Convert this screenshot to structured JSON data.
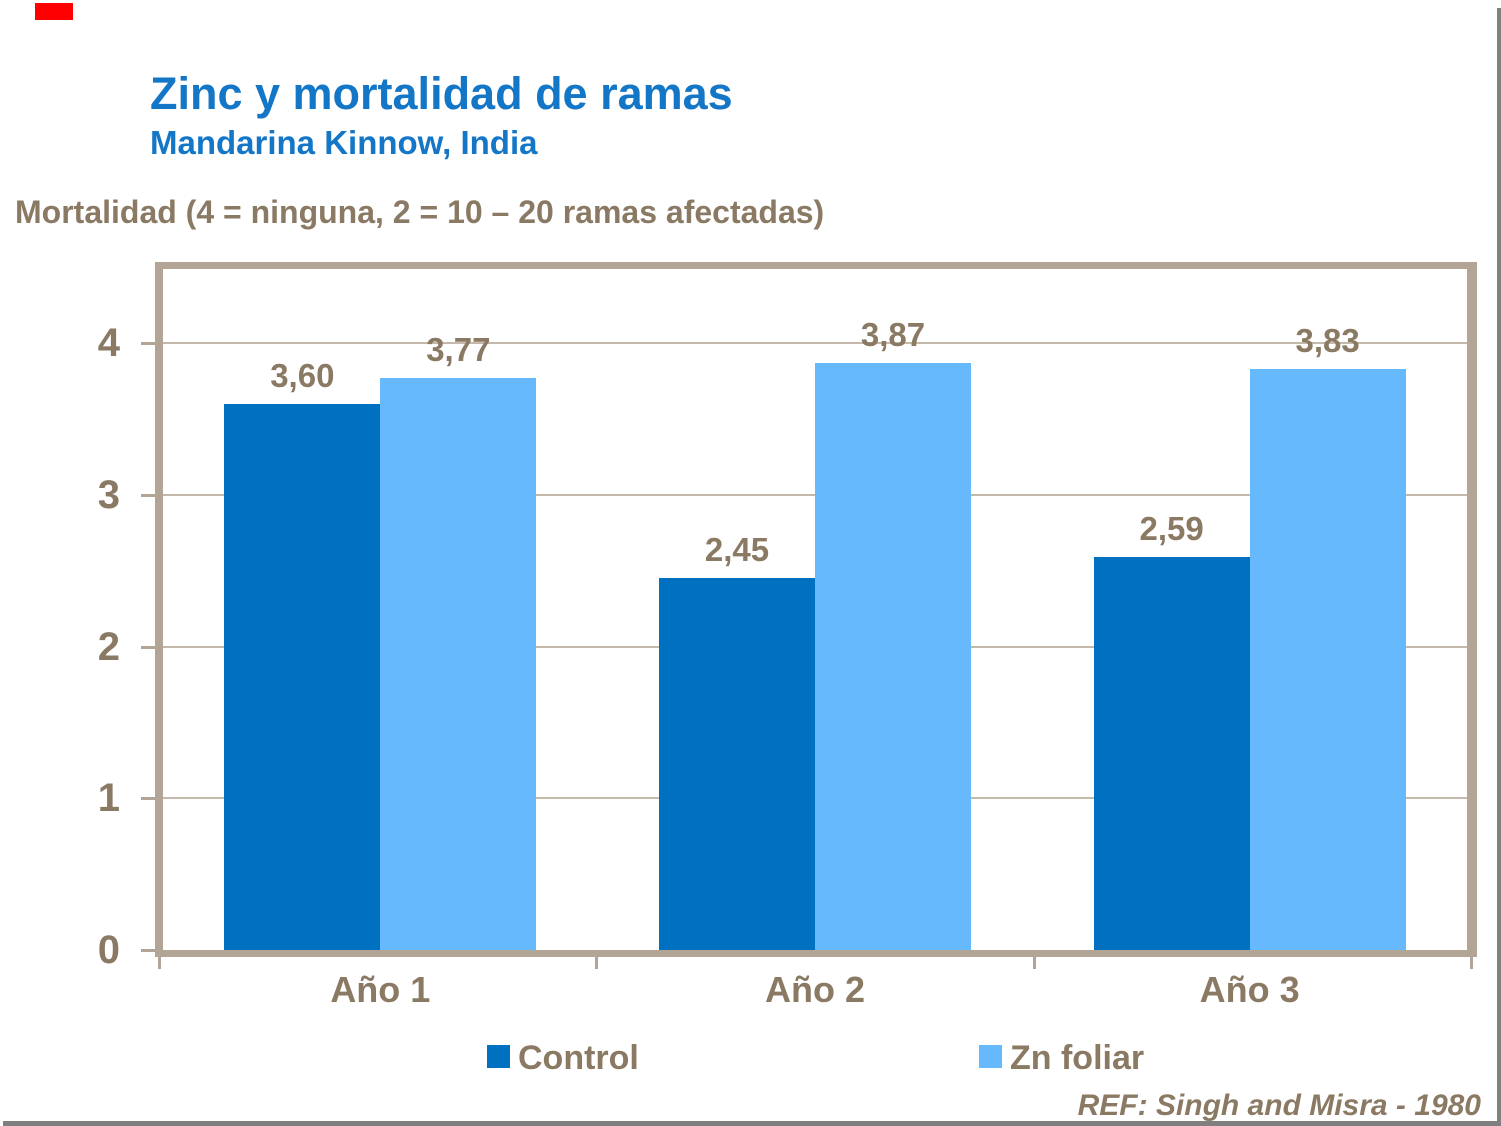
{
  "slide": {
    "title": "Zinc y mortalidad de ramas",
    "subtitle": "Mandarina Kinnow, India",
    "axis_note": "Mortalidad (4 = ninguna, 2 = 10 – 20 ramas afectadas)",
    "reference": "REF: Singh and Misra - 1980"
  },
  "colors": {
    "title_blue": "#1476C6",
    "text_brown": "#8A7963",
    "control_blue": "#0070C0",
    "zn_light_blue": "#66B9FC",
    "frame_tan": "#B2A595",
    "gridline_tan": "#C4B9AB",
    "edge_gray": "#7F7F7F",
    "marker_red": "#FF0000"
  },
  "chart_data": {
    "type": "bar",
    "title": "Zinc y mortalidad de ramas",
    "subtitle": "Mandarina Kinnow, India",
    "ylabel": "Mortalidad (4 = ninguna, 2 = 10 – 20 ramas afectadas)",
    "xlabel": "",
    "categories": [
      "Año 1",
      "Año 2",
      "Año 3"
    ],
    "series": [
      {
        "name": "Control",
        "color": "#0070C0",
        "values": [
          3.6,
          2.45,
          2.59
        ],
        "labels": [
          "3,60",
          "2,45",
          "2,59"
        ]
      },
      {
        "name": "Zn foliar",
        "color": "#66B9FC",
        "values": [
          3.77,
          3.87,
          3.83
        ],
        "labels": [
          "3,77",
          "3,87",
          "3,83"
        ]
      }
    ],
    "ylim": [
      0,
      4
    ],
    "yticks": [
      0,
      1,
      2,
      3,
      4
    ],
    "grid": true,
    "legend_position": "bottom",
    "annotation": "REF: Singh and Misra - 1980"
  }
}
